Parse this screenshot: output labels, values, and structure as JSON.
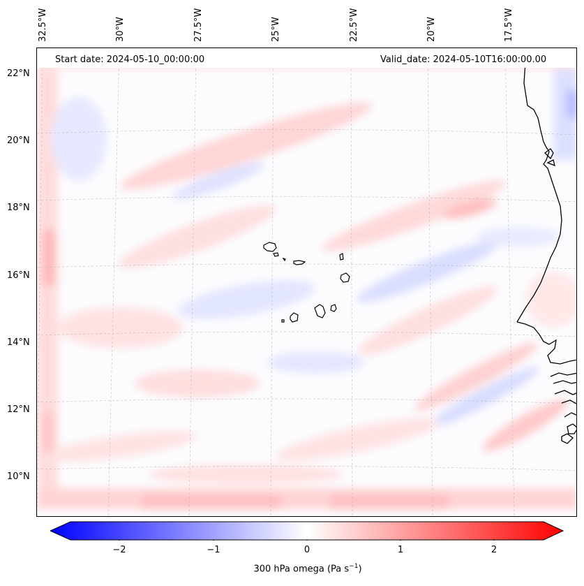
{
  "map": {
    "start_date": "Start date: 2024-05-10_00:00:00",
    "valid_date": "Valid_date: 2024-05-10T16:00:00.00",
    "longitude_labels": [
      "32.5°W",
      "30°W",
      "27.5°W",
      "25°W",
      "22.5°W",
      "20°W",
      "17.5°W"
    ],
    "latitude_labels": [
      "22°N",
      "20°N",
      "18°N",
      "16°N",
      "14°N",
      "12°N",
      "10°N"
    ],
    "features": [
      "Cape Verde islands",
      "West African coastline"
    ]
  },
  "colorbar": {
    "label_prefix": "300 hPa omega (Pa s",
    "label_exponent": "−1",
    "label_suffix": ")",
    "ticks": [
      "−2",
      "−1",
      "0",
      "1",
      "2"
    ],
    "range": [
      -2.75,
      2.75
    ],
    "colormap": "bwr",
    "negative_color": "#0000ff",
    "zero_color": "#ffffff",
    "positive_color": "#ff0000"
  }
}
